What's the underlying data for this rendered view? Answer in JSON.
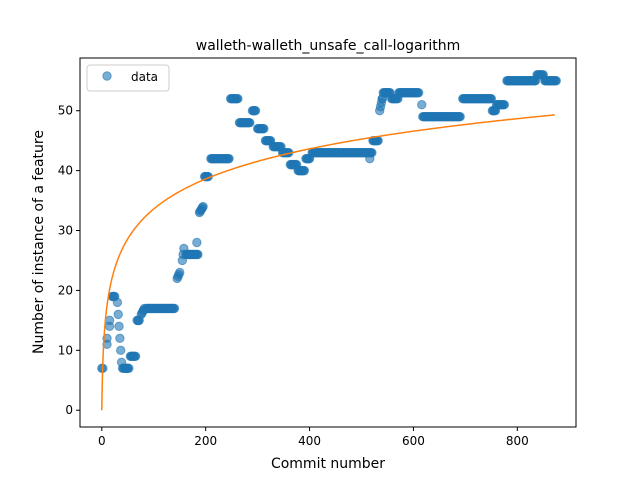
{
  "chart_data": {
    "type": "scatter",
    "title": "walleth-walleth_unsafe_call-logarithm",
    "xlabel": "Commit number",
    "ylabel": "Number of instance of a feature",
    "xlim": [
      -42,
      913
    ],
    "ylim": [
      -2.8,
      58.8
    ],
    "xticks": [
      0,
      200,
      400,
      600,
      800
    ],
    "yticks": [
      0,
      10,
      20,
      30,
      40,
      50
    ],
    "grid": false,
    "legend": {
      "placement": "top-left",
      "entries": [
        "data"
      ]
    },
    "colors": {
      "data": "#1f77b4",
      "fit": "#ff7f0e"
    },
    "series": [
      {
        "name": "data",
        "kind": "scatter",
        "segments": [
          [
            0,
            7,
            2,
            7
          ],
          [
            10,
            11,
            10,
            12
          ],
          [
            15,
            14,
            15,
            15
          ],
          [
            20,
            19,
            25,
            19
          ],
          [
            30,
            18,
            38,
            8
          ],
          [
            40,
            7,
            52,
            7
          ],
          [
            55,
            9,
            65,
            9
          ],
          [
            68,
            15,
            72,
            15
          ],
          [
            76,
            16,
            82,
            17
          ],
          [
            86,
            17,
            140,
            17
          ],
          [
            145,
            22,
            150,
            23
          ],
          [
            155,
            25,
            158,
            27
          ],
          [
            162,
            26,
            185,
            26
          ],
          [
            188,
            33,
            195,
            34
          ],
          [
            198,
            39,
            205,
            39
          ],
          [
            210,
            42,
            245,
            42
          ],
          [
            248,
            52,
            262,
            52
          ],
          [
            265,
            48,
            285,
            48
          ],
          [
            290,
            50,
            296,
            50
          ],
          [
            300,
            47,
            312,
            47
          ],
          [
            315,
            45,
            325,
            45
          ],
          [
            330,
            44,
            345,
            44
          ],
          [
            348,
            43,
            360,
            43
          ],
          [
            363,
            41,
            375,
            41
          ],
          [
            378,
            40,
            390,
            40
          ],
          [
            393,
            42,
            400,
            42
          ],
          [
            405,
            43,
            520,
            43
          ],
          [
            522,
            45,
            532,
            45
          ],
          [
            535,
            50,
            540,
            52
          ],
          [
            542,
            53,
            555,
            53
          ],
          [
            558,
            52,
            570,
            52
          ],
          [
            572,
            53,
            610,
            53
          ],
          [
            618,
            49,
            690,
            49
          ],
          [
            695,
            52,
            750,
            52
          ],
          [
            752,
            50,
            758,
            50
          ],
          [
            760,
            51,
            775,
            51
          ],
          [
            780,
            55,
            835,
            55
          ],
          [
            838,
            56,
            850,
            56
          ],
          [
            853,
            55,
            875,
            55
          ]
        ],
        "outliers": [
          [
            183,
            28
          ],
          [
            516,
            42
          ],
          [
            540,
            52
          ],
          [
            616,
            51
          ]
        ]
      },
      {
        "kind": "line",
        "model": "a + b*ln(x+1)",
        "a": 0,
        "b": 7.28,
        "x_range": [
          0,
          872
        ]
      }
    ]
  }
}
